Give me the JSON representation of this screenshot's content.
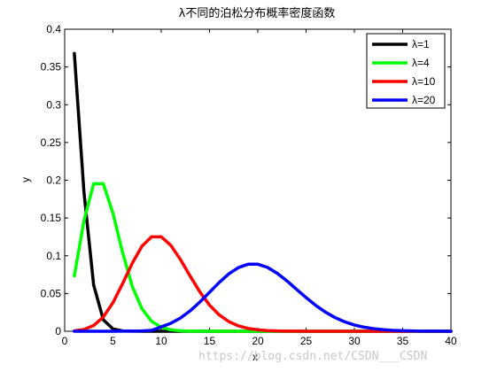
{
  "chart_data": {
    "type": "line",
    "title": "λ不同的泊松分布概率密度函数",
    "xlabel": "x",
    "ylabel": "y",
    "xlim": [
      0,
      40
    ],
    "ylim": [
      0,
      0.4
    ],
    "xticks": [
      0,
      5,
      10,
      15,
      20,
      25,
      30,
      35,
      40
    ],
    "yticks": [
      0,
      0.05,
      0.1,
      0.15,
      0.2,
      0.25,
      0.3,
      0.35,
      0.4
    ],
    "ytick_labels": [
      "0",
      "0.05",
      "0.1",
      "0.15",
      "0.2",
      "0.25",
      "0.3",
      "0.35",
      "0.4"
    ],
    "grid": false,
    "legend_position": "top-right",
    "x": [
      1,
      2,
      3,
      4,
      5,
      6,
      7,
      8,
      9,
      10,
      11,
      12,
      13,
      14,
      15,
      16,
      17,
      18,
      19,
      20,
      21,
      22,
      23,
      24,
      25,
      26,
      27,
      28,
      29,
      30,
      31,
      32,
      33,
      34,
      35,
      36,
      37,
      38,
      39,
      40
    ],
    "series": [
      {
        "name": "λ=1",
        "color": "#000000",
        "values": [
          0.3679,
          0.1839,
          0.0613,
          0.0153,
          0.0031,
          0.0005,
          0.0001,
          0,
          0,
          0,
          0,
          0,
          0,
          0,
          0,
          0,
          0,
          0,
          0,
          0,
          0,
          0,
          0,
          0,
          0,
          0,
          0,
          0,
          0,
          0,
          0,
          0,
          0,
          0,
          0,
          0,
          0,
          0,
          0,
          0
        ]
      },
      {
        "name": "λ=4",
        "color": "#00ff00",
        "values": [
          0.0733,
          0.1465,
          0.1954,
          0.1954,
          0.1563,
          0.1042,
          0.0595,
          0.0298,
          0.0132,
          0.0053,
          0.0019,
          0.0006,
          0.0002,
          0.0001,
          0,
          0,
          0,
          0,
          0,
          0,
          0,
          0,
          0,
          0,
          0,
          0,
          0,
          0,
          0,
          0,
          0,
          0,
          0,
          0,
          0,
          0,
          0,
          0,
          0,
          0
        ]
      },
      {
        "name": "λ=10",
        "color": "#ff0000",
        "values": [
          0.0005,
          0.0023,
          0.0076,
          0.0189,
          0.0378,
          0.0631,
          0.0901,
          0.1126,
          0.1251,
          0.1251,
          0.1137,
          0.0948,
          0.0729,
          0.0521,
          0.0347,
          0.0217,
          0.0128,
          0.0071,
          0.0037,
          0.0019,
          0.0009,
          0.0004,
          0.0002,
          0.0001,
          0,
          0,
          0,
          0,
          0,
          0,
          0,
          0,
          0,
          0,
          0,
          0,
          0,
          0,
          0,
          0
        ]
      },
      {
        "name": "λ=20",
        "color": "#0000ff",
        "values": [
          0,
          0,
          0,
          0,
          0,
          0.0001,
          0.0002,
          0.0005,
          0.0011,
          0.0058,
          0.0106,
          0.0176,
          0.0271,
          0.0387,
          0.0516,
          0.0646,
          0.076,
          0.0844,
          0.0888,
          0.0888,
          0.0846,
          0.0769,
          0.0669,
          0.0557,
          0.0446,
          0.0343,
          0.0254,
          0.0181,
          0.0125,
          0.0083,
          0.0054,
          0.0034,
          0.002,
          0.0012,
          0.0007,
          0.0004,
          0.0002,
          0.0001,
          0.0001,
          0
        ]
      }
    ]
  },
  "watermark": "https://blog.csdn.net/CSDN___CSDN"
}
